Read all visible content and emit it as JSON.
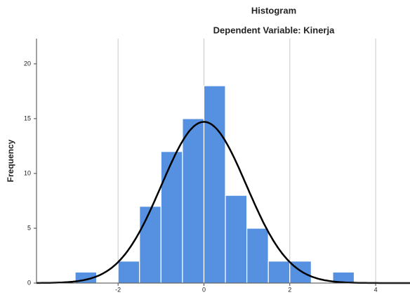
{
  "chart_data": {
    "type": "histogram",
    "title": "Histogram",
    "subtitle": "Dependent Variable: Kinerja",
    "y_label": "Frequency",
    "bins": [
      -3,
      -2.5,
      -2,
      -1.5,
      -1,
      -0.5,
      0,
      0.5,
      1,
      1.5,
      2,
      2.5,
      3,
      3.5
    ],
    "values": [
      1,
      0,
      2,
      7,
      12,
      15,
      18,
      8,
      5,
      2,
      2,
      0,
      1
    ],
    "color": "#5591e0",
    "normal_curve": {
      "mean": 0,
      "std_dev": 0.99,
      "color": "#000000"
    },
    "xlim": [
      -3.9,
      4.8
    ],
    "xticks": [
      -2,
      0,
      2,
      4
    ],
    "ylim": [
      0,
      22.3
    ],
    "yticks": [
      0,
      5,
      10,
      15,
      20
    ],
    "grid": true
  }
}
